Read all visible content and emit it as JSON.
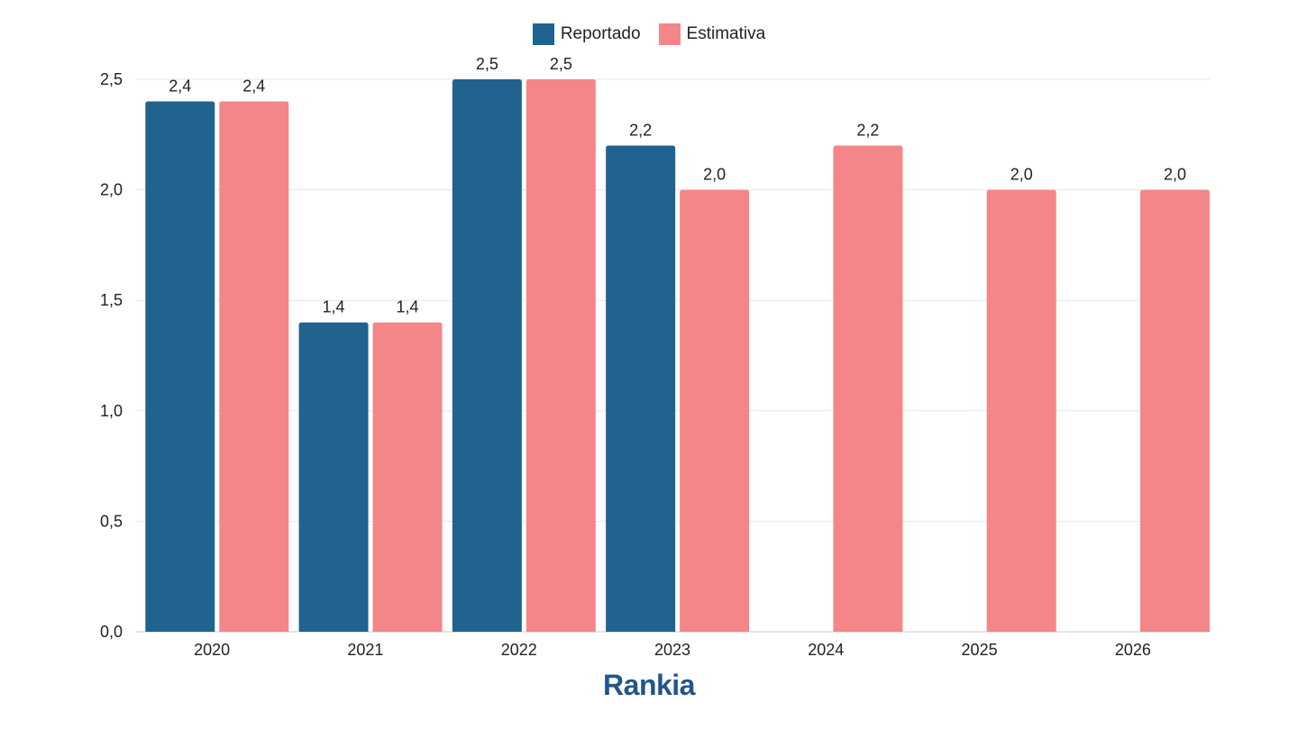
{
  "chart_data": {
    "type": "bar",
    "title": "",
    "xlabel": "",
    "ylabel": "",
    "categories": [
      "2020",
      "2021",
      "2022",
      "2023",
      "2024",
      "2025",
      "2026"
    ],
    "series": [
      {
        "name": "Reportado",
        "color": "#21638f",
        "values": [
          2.4,
          1.4,
          2.5,
          2.2,
          null,
          null,
          null
        ],
        "labels": [
          "2,4",
          "1,4",
          "2,5",
          "2,2",
          null,
          null,
          null
        ]
      },
      {
        "name": "Estimativa",
        "color": "#f58688",
        "values": [
          2.4,
          1.4,
          2.5,
          2.0,
          2.2,
          2.0,
          2.0
        ],
        "labels": [
          "2,4",
          "1,4",
          "2,5",
          "2,0",
          "2,2",
          "2,0",
          "2,0"
        ]
      }
    ],
    "ylim": [
      0,
      2.5
    ],
    "yticks": [
      0,
      0.5,
      1.0,
      1.5,
      2.0,
      2.5
    ],
    "ytick_labels": [
      "0,0",
      "0,5",
      "1,0",
      "1,5",
      "2,0",
      "2,5"
    ],
    "grid": true,
    "legend_position": "top-center"
  },
  "legend": {
    "reportado": "Reportado",
    "estimativa": "Estimativa"
  },
  "logo": {
    "text": "Rankia",
    "color": "#21568a",
    "accent_color": "#d23a3a"
  }
}
